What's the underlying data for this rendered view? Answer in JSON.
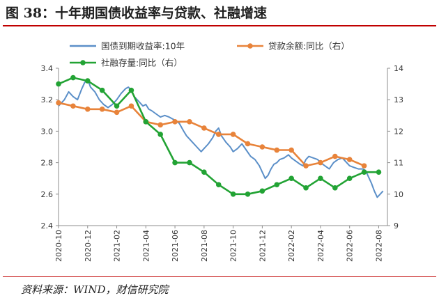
{
  "figure": {
    "title": "图 38：十年期国债收益率与贷款、社融增速",
    "source": "资料来源：WIND，财信研究院"
  },
  "colors": {
    "accent_rule": "#c00000",
    "bond": "#5b8fc8",
    "loan": "#e8833a",
    "tsf": "#22a334"
  },
  "chart_data": {
    "type": "line",
    "x_tick_labels": [
      "2020-10",
      "2020-12",
      "2021-02",
      "2021-04",
      "2021-06",
      "2021-08",
      "2021-10",
      "2021-12",
      "2022-02",
      "2022-04",
      "2022-06",
      "2022-08"
    ],
    "x_range": [
      0,
      22.6
    ],
    "y_left": {
      "range": [
        2.4,
        3.4
      ],
      "ticks": [
        "2.4",
        "2.6",
        "2.8",
        "3.0",
        "3.2",
        "3.4"
      ]
    },
    "y_right": {
      "range": [
        9,
        14
      ],
      "ticks": [
        "9",
        "10",
        "11",
        "12",
        "13",
        "14"
      ]
    },
    "legend": {
      "placement": "top",
      "columns": 2
    },
    "grid": false,
    "series": [
      {
        "name": "国债到期收益率:10年",
        "axis": "left",
        "color_key": "bond",
        "marker": "none",
        "points": [
          [
            0.0,
            3.16
          ],
          [
            0.4,
            3.2
          ],
          [
            0.7,
            3.25
          ],
          [
            1.0,
            3.22
          ],
          [
            1.3,
            3.2
          ],
          [
            1.6,
            3.27
          ],
          [
            1.8,
            3.31
          ],
          [
            2.0,
            3.33
          ],
          [
            2.2,
            3.28
          ],
          [
            2.5,
            3.25
          ],
          [
            2.8,
            3.2
          ],
          [
            3.1,
            3.17
          ],
          [
            3.4,
            3.15
          ],
          [
            3.7,
            3.17
          ],
          [
            4.0,
            3.2
          ],
          [
            4.3,
            3.24
          ],
          [
            4.6,
            3.27
          ],
          [
            4.8,
            3.28
          ],
          [
            5.0,
            3.26
          ],
          [
            5.2,
            3.22
          ],
          [
            5.4,
            3.2
          ],
          [
            5.6,
            3.18
          ],
          [
            5.8,
            3.16
          ],
          [
            6.0,
            3.17
          ],
          [
            6.2,
            3.14
          ],
          [
            6.4,
            3.13
          ],
          [
            6.7,
            3.11
          ],
          [
            7.0,
            3.09
          ],
          [
            7.3,
            3.1
          ],
          [
            7.6,
            3.09
          ],
          [
            8.0,
            3.07
          ],
          [
            8.3,
            3.05
          ],
          [
            8.6,
            3.0
          ],
          [
            8.8,
            2.97
          ],
          [
            9.0,
            2.95
          ],
          [
            9.2,
            2.93
          ],
          [
            9.5,
            2.9
          ],
          [
            9.8,
            2.87
          ],
          [
            10.0,
            2.89
          ],
          [
            10.3,
            2.92
          ],
          [
            10.6,
            2.96
          ],
          [
            10.8,
            3.0
          ],
          [
            11.0,
            3.02
          ],
          [
            11.2,
            2.97
          ],
          [
            11.5,
            2.93
          ],
          [
            11.8,
            2.9
          ],
          [
            12.0,
            2.87
          ],
          [
            12.3,
            2.89
          ],
          [
            12.6,
            2.92
          ],
          [
            12.9,
            2.88
          ],
          [
            13.2,
            2.84
          ],
          [
            13.5,
            2.82
          ],
          [
            13.8,
            2.78
          ],
          [
            14.0,
            2.74
          ],
          [
            14.2,
            2.7
          ],
          [
            14.4,
            2.72
          ],
          [
            14.6,
            2.76
          ],
          [
            14.8,
            2.79
          ],
          [
            15.0,
            2.8
          ],
          [
            15.2,
            2.82
          ],
          [
            15.5,
            2.83
          ],
          [
            15.8,
            2.85
          ],
          [
            16.0,
            2.83
          ],
          [
            16.3,
            2.81
          ],
          [
            16.6,
            2.79
          ],
          [
            16.8,
            2.78
          ],
          [
            17.0,
            2.82
          ],
          [
            17.2,
            2.84
          ],
          [
            17.5,
            2.83
          ],
          [
            17.8,
            2.82
          ],
          [
            18.0,
            2.8
          ],
          [
            18.3,
            2.78
          ],
          [
            18.6,
            2.76
          ],
          [
            18.9,
            2.8
          ],
          [
            19.2,
            2.82
          ],
          [
            19.5,
            2.83
          ],
          [
            19.8,
            2.8
          ],
          [
            20.0,
            2.78
          ],
          [
            20.3,
            2.77
          ],
          [
            20.6,
            2.76
          ],
          [
            20.9,
            2.76
          ],
          [
            21.1,
            2.75
          ],
          [
            21.3,
            2.71
          ],
          [
            21.5,
            2.67
          ],
          [
            21.7,
            2.62
          ],
          [
            21.9,
            2.58
          ],
          [
            22.1,
            2.6
          ],
          [
            22.3,
            2.62
          ]
        ]
      },
      {
        "name": "贷款余额:同比（右）",
        "axis": "right",
        "color_key": "loan",
        "marker": "circle",
        "points": [
          [
            0,
            12.9
          ],
          [
            1,
            12.8
          ],
          [
            2,
            12.7
          ],
          [
            3,
            12.7
          ],
          [
            4,
            12.6
          ],
          [
            5,
            12.8
          ],
          [
            6,
            12.3
          ],
          [
            7,
            12.2
          ],
          [
            8,
            12.3
          ],
          [
            9,
            12.3
          ],
          [
            10,
            12.1
          ],
          [
            11,
            11.9
          ],
          [
            12,
            11.9
          ],
          [
            13,
            11.6
          ],
          [
            14,
            11.5
          ],
          [
            15,
            11.4
          ],
          [
            16,
            11.4
          ],
          [
            17,
            10.9
          ],
          [
            18,
            11.0
          ],
          [
            19,
            11.2
          ],
          [
            20,
            11.1
          ],
          [
            21,
            10.9
          ]
        ]
      },
      {
        "name": "社融存量:同比（右）",
        "axis": "right",
        "color_key": "tsf",
        "marker": "circle",
        "points": [
          [
            0,
            13.5
          ],
          [
            1,
            13.7
          ],
          [
            2,
            13.6
          ],
          [
            3,
            13.3
          ],
          [
            4,
            12.8
          ],
          [
            5,
            13.3
          ],
          [
            6,
            12.3
          ],
          [
            7,
            11.9
          ],
          [
            8,
            11.0
          ],
          [
            9,
            11.0
          ],
          [
            10,
            10.7
          ],
          [
            11,
            10.3
          ],
          [
            12,
            10.0
          ],
          [
            13,
            10.0
          ],
          [
            14,
            10.1
          ],
          [
            15,
            10.3
          ],
          [
            16,
            10.5
          ],
          [
            17,
            10.2
          ],
          [
            18,
            10.5
          ],
          [
            19,
            10.2
          ],
          [
            20,
            10.5
          ],
          [
            21,
            10.7
          ],
          [
            22,
            10.7
          ]
        ]
      }
    ]
  }
}
